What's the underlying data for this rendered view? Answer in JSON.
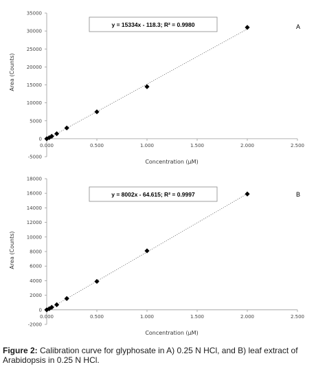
{
  "caption": {
    "label": "Figure 2:",
    "text": "Calibration curve for glyphosate in A) 0.25 N HCl, and B) leaf extract of Arabidopsis in 0.25 N HCl."
  },
  "chart_data": [
    {
      "type": "scatter",
      "panel_label": "A",
      "xlabel": "Concentration (µM)",
      "ylabel": "Area (Counts)",
      "xlim": [
        0,
        2.5
      ],
      "ylim": [
        -5000,
        35000
      ],
      "x_ticks": [
        "0.000",
        "0.500",
        "1.000",
        "1.500",
        "2.000",
        "2.500"
      ],
      "y_ticks": [
        "-5000",
        "0",
        "5000",
        "10000",
        "15000",
        "20000",
        "25000",
        "30000",
        "35000"
      ],
      "series": [
        {
          "x": [
            0.0,
            0.025,
            0.05,
            0.1,
            0.2,
            0.5,
            1.0,
            2.0
          ],
          "y": [
            0,
            300,
            700,
            1400,
            3000,
            7500,
            14500,
            31000
          ]
        }
      ],
      "trendline": {
        "slope": 15334,
        "intercept": -118.3,
        "style": "dotted"
      },
      "equation": "y = 15334x - 118.3;  R² = 0.9980",
      "marker": "diamond",
      "grid": false
    },
    {
      "type": "scatter",
      "panel_label": "B",
      "xlabel": "Concentration (µM)",
      "ylabel": "Area (Counts)",
      "xlim": [
        0,
        2.5
      ],
      "ylim": [
        -2000,
        18000
      ],
      "x_ticks": [
        "0.000",
        "0.500",
        "1.000",
        "1.500",
        "2.000",
        "2.500"
      ],
      "y_ticks": [
        "-2000",
        "0",
        "2000",
        "4000",
        "6000",
        "8000",
        "10000",
        "12000",
        "14000",
        "16000",
        "18000"
      ],
      "series": [
        {
          "x": [
            0.0,
            0.025,
            0.05,
            0.1,
            0.2,
            0.5,
            1.0,
            2.0
          ],
          "y": [
            0,
            150,
            350,
            700,
            1550,
            3900,
            8100,
            15900
          ]
        }
      ],
      "trendline": {
        "slope": 8002,
        "intercept": -64.615,
        "style": "dotted"
      },
      "equation": "y = 8002x - 64.615;  R² = 0.9997",
      "marker": "diamond",
      "grid": false
    }
  ]
}
